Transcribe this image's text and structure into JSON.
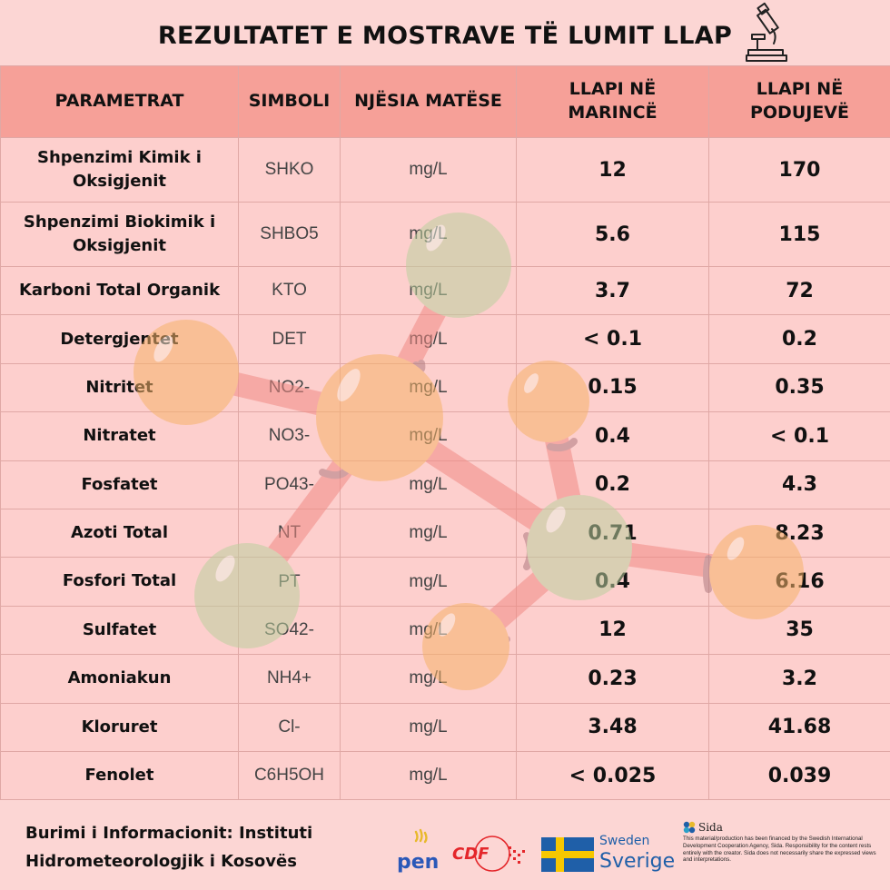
{
  "title": "REZULTATET E MOSTRAVE TË LUMIT LLAP",
  "header": {
    "parametrat": "PARAMETRAT",
    "simboli": "SIMBOLI",
    "njesia": "NJËSIA MATËSE",
    "marince": "LLAPI NË MARINCË",
    "podujeve": "LLAPI NË PODUJEVË"
  },
  "rows": [
    {
      "param": "Shpenzimi Kimik i Oksigjenit",
      "symbol": "SHKO",
      "unit": "mg/L",
      "marince": "12",
      "podujeve": "170"
    },
    {
      "param": "Shpenzimi Biokimik i Oksigjenit",
      "symbol": "SHBO5",
      "unit": "mg/L",
      "marince": "5.6",
      "podujeve": "115"
    },
    {
      "param": "Karboni Total Organik",
      "symbol": "KTO",
      "unit": "mg/L",
      "marince": "3.7",
      "podujeve": "72"
    },
    {
      "param": "Detergjentet",
      "symbol": "DET",
      "unit": "mg/L",
      "marince": "< 0.1",
      "podujeve": "0.2"
    },
    {
      "param": "Nitritet",
      "symbol": "NO2-",
      "unit": "mg/L",
      "marince": "0.15",
      "podujeve": "0.35"
    },
    {
      "param": "Nitratet",
      "symbol": "NO3-",
      "unit": "mg/L",
      "marince": "0.4",
      "podujeve": "< 0.1"
    },
    {
      "param": "Fosfatet",
      "symbol": "PO43-",
      "unit": "mg/L",
      "marince": "0.2",
      "podujeve": "4.3"
    },
    {
      "param": "Azoti Total",
      "symbol": "NT",
      "unit": "mg/L",
      "marince": "0.71",
      "podujeve": "8.23"
    },
    {
      "param": "Fosfori Total",
      "symbol": "PT",
      "unit": "mg/L",
      "marince": "0.4",
      "podujeve": "6.16"
    },
    {
      "param": "Sulfatet",
      "symbol": "SO42-",
      "unit": "mg/L",
      "marince": "12",
      "podujeve": "35"
    },
    {
      "param": "Amoniakun",
      "symbol": "NH4+",
      "unit": "mg/L",
      "marince": "0.23",
      "podujeve": "3.2"
    },
    {
      "param": "Kloruret",
      "symbol": "Cl-",
      "unit": "mg/L",
      "marince": "3.48",
      "podujeve": "41.68"
    },
    {
      "param": "Fenolet",
      "symbol": "C6H5OH",
      "unit": "mg/L",
      "marince": "< 0.025",
      "podujeve": "0.039"
    }
  ],
  "footer": {
    "source_line1": "Burimi i Informacionit: Instituti",
    "source_line2": "Hidrometeorologjik i Kosovës",
    "logo_pen": "pen",
    "logo_cdf": "CDF",
    "sweden_small": "Sweden",
    "sweden_big": "Sverige",
    "sida_name": "Sida",
    "sida_text": "This material/production has been financed by the Swedish International Development Cooperation Agency, Sida. Responsibility for the content rests entirely with the creator. Sida does not necessarily share the expressed views and interpretations."
  },
  "colors": {
    "background": "#fcd6d4",
    "header_row": "#f6a098",
    "sweden_blue": "#1f5fa8",
    "sweden_yellow": "#f6c700",
    "cdf_red": "#e4262a"
  },
  "icons": [
    "microscope-icon",
    "molecule-illustration",
    "pen-logo",
    "cdf-logo",
    "sweden-flag-icon",
    "sida-logo"
  ]
}
